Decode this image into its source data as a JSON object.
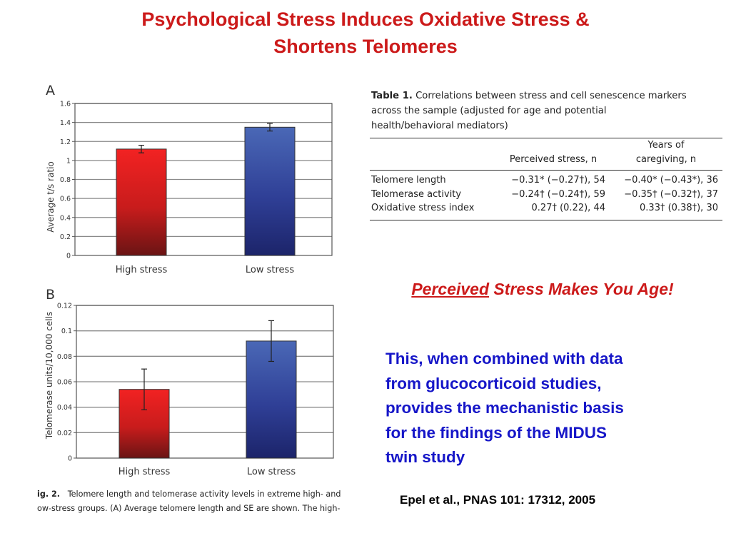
{
  "slide_title": {
    "line1": "Psychological Stress Induces Oxidative Stress &",
    "line2": "Shortens Telomeres"
  },
  "chart_data": [
    {
      "type": "bar",
      "panel_label": "A",
      "categories": [
        "High stress",
        "Low stress"
      ],
      "values": [
        1.12,
        1.35
      ],
      "error": [
        0.04,
        0.04
      ],
      "ylabel": "Average t/s ratio",
      "ylim": [
        0,
        1.6
      ],
      "yticks": [
        "0",
        "0.2",
        "0.4",
        "0.6",
        "0.8",
        "1",
        "1.2",
        "1.4",
        "1.6"
      ],
      "grid": true,
      "colors": [
        "#e8201f",
        "#3f5aaa"
      ]
    },
    {
      "type": "bar",
      "panel_label": "B",
      "categories": [
        "High stress",
        "Low stress"
      ],
      "values": [
        0.054,
        0.092
      ],
      "error": [
        0.016,
        0.016
      ],
      "ylabel": "Telomerase units/10,000 cells",
      "ylim": [
        0,
        0.12
      ],
      "yticks": [
        "0",
        "0.02",
        "0.04",
        "0.06",
        "0.08",
        "0.1",
        "0.12"
      ],
      "grid": true,
      "colors": [
        "#e8201f",
        "#3f5aaa"
      ]
    }
  ],
  "figure_caption": {
    "prefix": "ig. 2.",
    "line1": "Telomere length and telomerase activity levels in extreme high- and",
    "line2": "ow-stress groups. (A) Average telomere length and SE are shown. The high-"
  },
  "table": {
    "label": "Table 1.",
    "caption_line1": "Correlations between stress and cell senescence markers",
    "caption_line2": "across the sample (adjusted for age and potential",
    "caption_line3": "health/behavioral mediators)",
    "col1_header": "Perceived stress, n",
    "col2_header_line1": "Years of",
    "col2_header_line2": "caregiving, n",
    "rows": [
      {
        "label": "Telomere length",
        "perceived": "−0.31* (−0.27†), 54",
        "caregiving": "−0.40* (−0.43*), 36"
      },
      {
        "label": "Telomerase activity",
        "perceived": "−0.24† (−0.24†), 59",
        "caregiving": "−0.35† (−0.32†), 37"
      },
      {
        "label": "Oxidative stress index",
        "perceived": "0.27† (0.22), 44",
        "caregiving": "0.33† (0.38†), 30"
      }
    ]
  },
  "subtitle": {
    "underlined": "Perceived",
    "rest": "Stress Makes You Age!"
  },
  "body_text": {
    "line1": "This, when combined with data",
    "line2": "from glucocorticoid studies,",
    "line3": "provides the mechanistic basis",
    "line4": "for the findings of the MIDUS",
    "line5": "twin study"
  },
  "citation": "Epel et al., PNAS 101: 17312, 2005",
  "colors": {
    "title_red": "#cc1a1a",
    "body_blue": "#1616c8"
  }
}
